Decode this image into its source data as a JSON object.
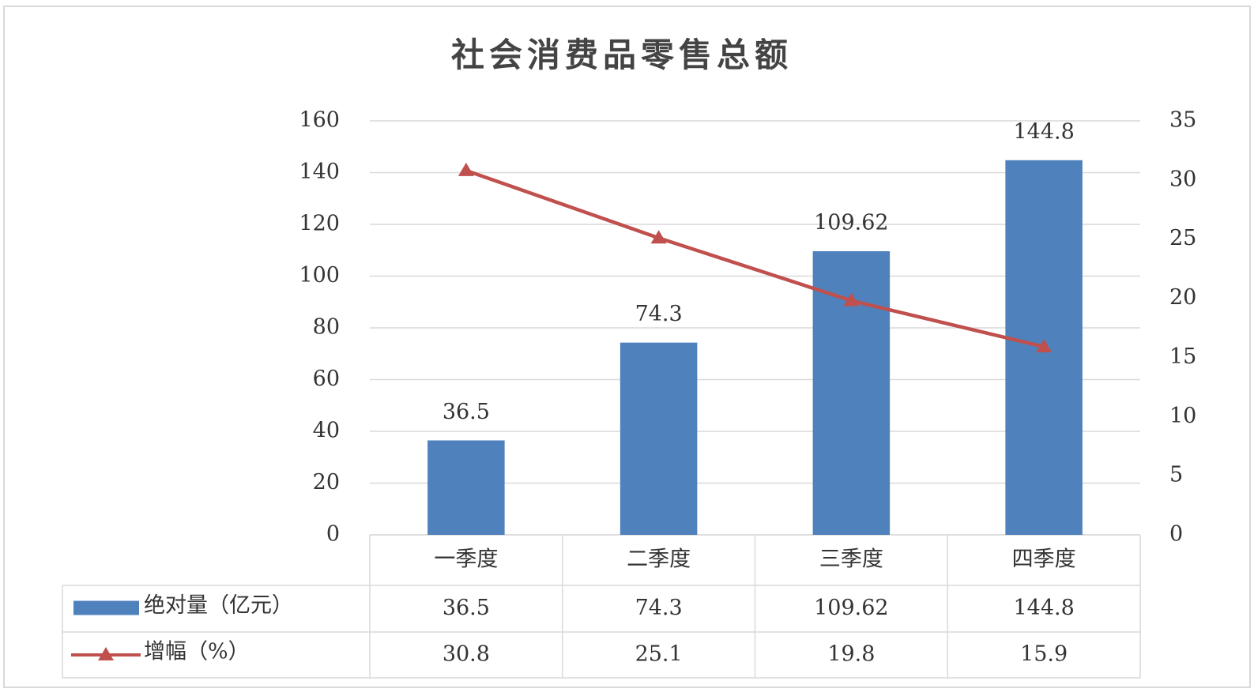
{
  "chart_data": {
    "type": "bar",
    "title": "社会消费品零售总额",
    "categories": [
      "一季度",
      "二季度",
      "三季度",
      "四季度"
    ],
    "series": [
      {
        "name": "绝对量（亿元）",
        "type": "bar",
        "color": "#4f81bd",
        "values": [
          36.5,
          74.3,
          109.62,
          144.8
        ]
      },
      {
        "name": "增幅（%）",
        "type": "line",
        "color": "#c0504d",
        "axis": "y2",
        "values": [
          30.8,
          25.1,
          19.8,
          15.9
        ]
      }
    ],
    "ylim": [
      0,
      160
    ],
    "yticks": [
      0,
      20,
      40,
      60,
      80,
      100,
      120,
      140,
      160
    ],
    "y2lim": [
      0,
      35
    ],
    "y2ticks": [
      0,
      5,
      10,
      15,
      20,
      25,
      30,
      35
    ],
    "grid": true,
    "data_table": true
  }
}
